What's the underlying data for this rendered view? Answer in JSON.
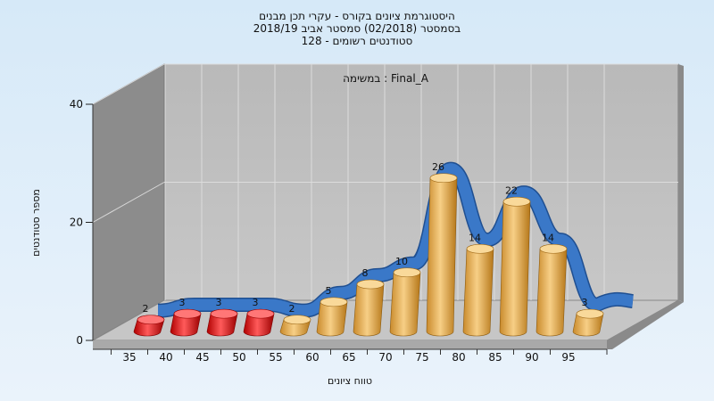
{
  "chart_data": {
    "type": "bar",
    "title_lines": [
      "היסטוגרמת ציונים בקורס - עקרי תכן מבנים",
      "בסמסטר  (02/2018)  סמסטר אביב 2018/19",
      "סטודנטים רשומים - 128"
    ],
    "subtitle": "במשימה : Final_A",
    "xlabel": "טווח ציונים",
    "ylabel": "מספר סטודנטים",
    "categories": [
      "35",
      "40",
      "45",
      "50",
      "55",
      "60",
      "65",
      "70",
      "75",
      "80",
      "85",
      "90",
      "95"
    ],
    "values": [
      2,
      3,
      3,
      3,
      2,
      5,
      8,
      10,
      26,
      14,
      22,
      14,
      3
    ],
    "bar_colors": [
      "#e01010",
      "#e01010",
      "#e01010",
      "#e01010",
      "#e8a740",
      "#e8a740",
      "#e8a740",
      "#e8a740",
      "#e8a740",
      "#e8a740",
      "#e8a740",
      "#e8a740",
      "#e8a740"
    ],
    "yticks": [
      "0",
      "20",
      "40"
    ],
    "ylim": [
      0,
      40
    ],
    "legend": "none",
    "grid": true,
    "curve_color": "#3a78c8"
  }
}
